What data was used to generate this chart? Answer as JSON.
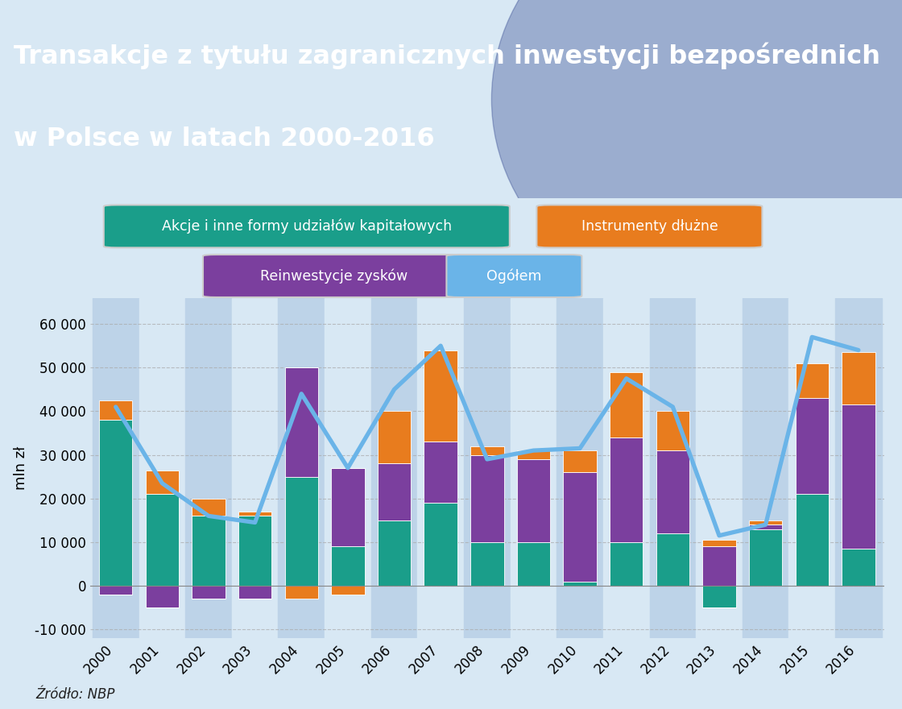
{
  "title_line1": "Transakcje z tytułu zagranicznych inwestycji bezpośrednich",
  "title_line2": "w Polsce w latach 2000-2016",
  "years": [
    2000,
    2001,
    2002,
    2003,
    2004,
    2005,
    2006,
    2007,
    2008,
    2009,
    2010,
    2011,
    2012,
    2013,
    2014,
    2015,
    2016
  ],
  "akcje": [
    38000,
    21000,
    16000,
    16000,
    25000,
    9000,
    15000,
    19000,
    10000,
    10000,
    1000,
    10000,
    12000,
    -5000,
    13000,
    21000,
    8500
  ],
  "reinwestycje": [
    -2000,
    -5000,
    -3000,
    -3000,
    25000,
    18000,
    13000,
    14000,
    20000,
    19000,
    25000,
    24000,
    19000,
    9000,
    1000,
    22000,
    33000
  ],
  "instrumenty": [
    4500,
    5500,
    4000,
    1000,
    -3000,
    -2000,
    12000,
    21000,
    2000,
    2000,
    5000,
    15000,
    9000,
    1500,
    1000,
    8000,
    12000
  ],
  "ogolem": [
    41000,
    23500,
    16000,
    14500,
    44000,
    27000,
    45000,
    55000,
    29000,
    31000,
    31500,
    47500,
    41000,
    11500,
    14000,
    57000,
    54000
  ],
  "color_akcje": "#1a9e8a",
  "color_instrumenty": "#e87c1e",
  "color_reinwestycje": "#7b3f9e",
  "color_ogolem": "#6ab4e8",
  "color_title_bg": "#1e2f6e",
  "color_title_text": "#ffffff",
  "color_outer_bg": "#d8e8f4",
  "color_plot_bg_dark": "#bdd3e8",
  "color_plot_bg_light": "#d8e8f4",
  "ylabel": "mln zł",
  "source": "Źródło: NBP",
  "ylim": [
    -12000,
    66000
  ],
  "yticks": [
    -10000,
    0,
    10000,
    20000,
    30000,
    40000,
    50000,
    60000
  ],
  "ytick_labels": [
    "-10 000",
    "0",
    "10 000",
    "20 000",
    "30 000",
    "40 000",
    "50 000",
    "60 000"
  ],
  "legend_akcje": "Akcje i inne formy udziałów kapitałowych",
  "legend_instrumenty": "Instrumenty dłużne",
  "legend_reinwestycje": "Reinwestycje zysków",
  "legend_ogolem": "Ogółem"
}
